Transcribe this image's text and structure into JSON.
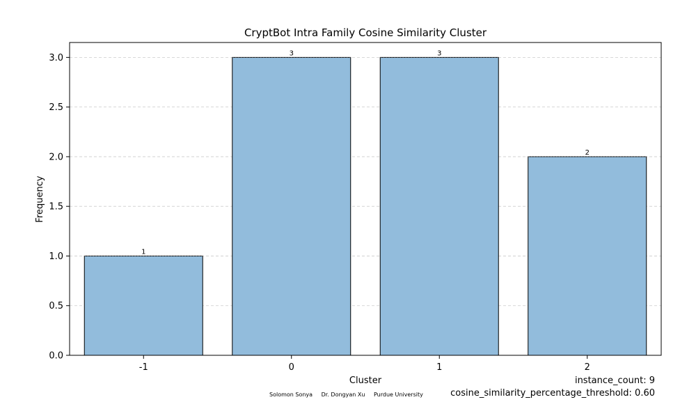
{
  "chart_data": {
    "type": "bar",
    "title": "CryptBot Intra Family Cosine Similarity Cluster",
    "xlabel": "Cluster",
    "ylabel": "Frequency",
    "categories": [
      "-1",
      "0",
      "1",
      "2"
    ],
    "values": [
      1,
      3,
      3,
      2
    ],
    "data_labels": [
      "1",
      "3",
      "3",
      "2"
    ],
    "ylim": [
      0,
      3.15
    ],
    "yticks": [
      0.0,
      0.5,
      1.0,
      1.5,
      2.0,
      2.5,
      3.0
    ],
    "ytick_labels": [
      "0.0",
      "0.5",
      "1.0",
      "1.5",
      "2.0",
      "2.5",
      "3.0"
    ],
    "grid": "y-dashed",
    "bar_color": "#92bcdc",
    "edge_color": "#000000"
  },
  "footer": {
    "credits": [
      "Solomon Sonya",
      "Dr. Dongyan Xu",
      "Purdue University"
    ],
    "instance_count": "instance_count: 9",
    "threshold": "cosine_similarity_percentage_threshold: 0.60"
  }
}
